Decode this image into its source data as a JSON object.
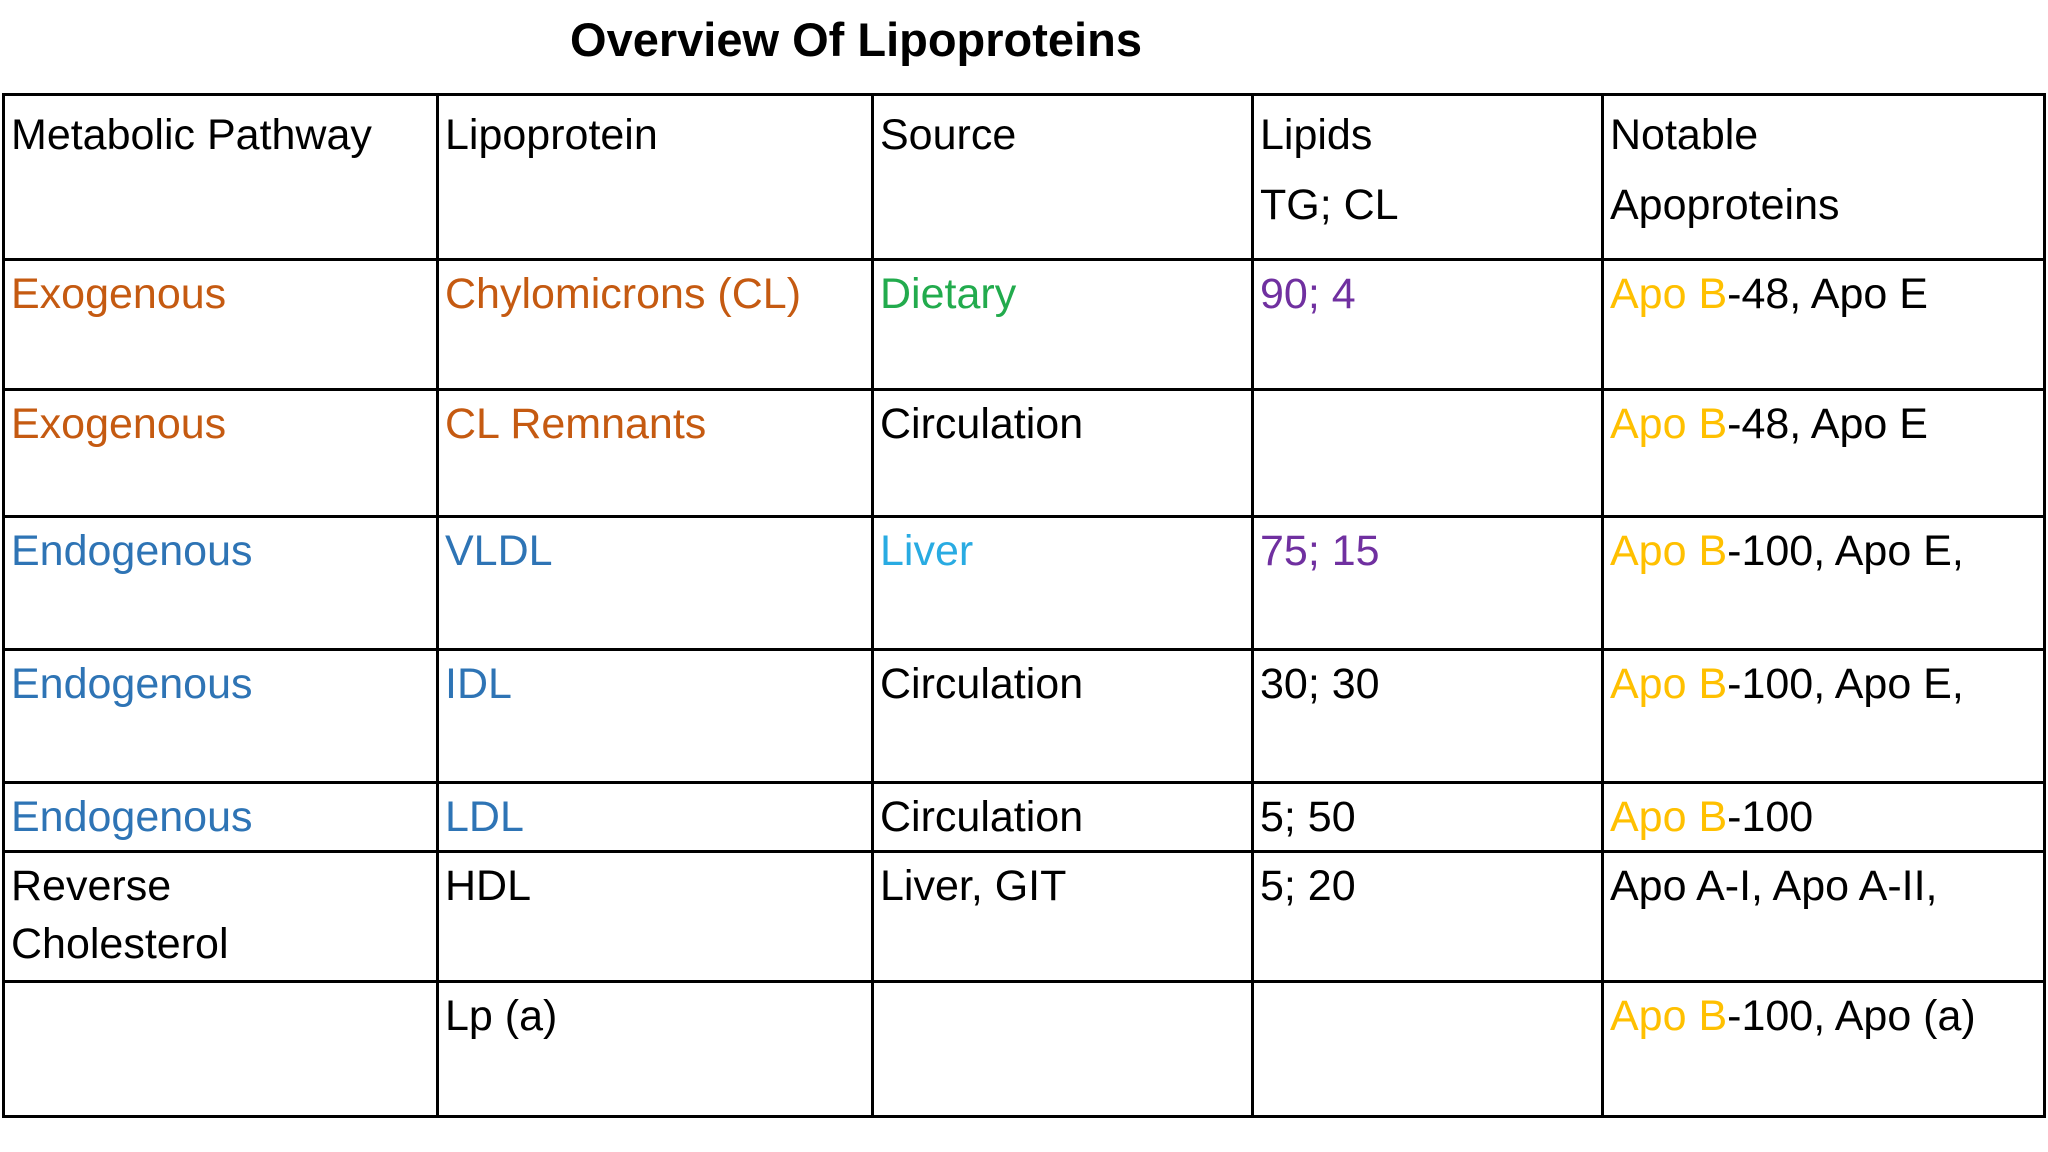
{
  "title": "Overview Of Lipoproteins",
  "palette": {
    "black": "#000000",
    "orange": "#C55A11",
    "green": "#22AB4D",
    "blue": "#2E74B5",
    "cyan": "#29ABE2",
    "purple": "#7030A0",
    "yellow": "#FFC000"
  },
  "table": {
    "header": [
      {
        "lines": [
          [
            {
              "t": "Metabolic Pathway",
              "c": "black"
            }
          ]
        ]
      },
      {
        "lines": [
          [
            {
              "t": "Lipoprotein",
              "c": "black"
            }
          ]
        ]
      },
      {
        "lines": [
          [
            {
              "t": "Source",
              "c": "black"
            }
          ]
        ]
      },
      {
        "lines": [
          [
            {
              "t": "Lipids",
              "c": "black"
            }
          ],
          [
            {
              "t": "TG; CL",
              "c": "black"
            }
          ]
        ]
      },
      {
        "lines": [
          [
            {
              "t": "Notable",
              "c": "black"
            }
          ],
          [
            {
              "t": "Apoproteins",
              "c": "black"
            }
          ]
        ]
      }
    ],
    "rows": [
      [
        {
          "lines": [
            [
              {
                "t": "Exogenous",
                "c": "orange"
              }
            ]
          ]
        },
        {
          "lines": [
            [
              {
                "t": "Chylomicrons (CL)",
                "c": "orange"
              }
            ]
          ]
        },
        {
          "lines": [
            [
              {
                "t": "Dietary",
                "c": "green"
              }
            ]
          ]
        },
        {
          "lines": [
            [
              {
                "t": "90; 4",
                "c": "purple"
              }
            ]
          ]
        },
        {
          "lines": [
            [
              {
                "t": "Apo B",
                "c": "yellow"
              },
              {
                "t": "-48, Apo E",
                "c": "black"
              }
            ]
          ]
        }
      ],
      [
        {
          "lines": [
            [
              {
                "t": "Exogenous",
                "c": "orange"
              }
            ]
          ]
        },
        {
          "lines": [
            [
              {
                "t": "CL Remnants",
                "c": "orange"
              }
            ]
          ]
        },
        {
          "lines": [
            [
              {
                "t": "Circulation",
                "c": "black"
              }
            ]
          ]
        },
        {
          "lines": []
        },
        {
          "lines": [
            [
              {
                "t": "Apo B",
                "c": "yellow"
              },
              {
                "t": "-48, Apo E",
                "c": "black"
              }
            ]
          ]
        }
      ],
      [
        {
          "lines": [
            [
              {
                "t": "Endogenous",
                "c": "blue"
              }
            ]
          ]
        },
        {
          "lines": [
            [
              {
                "t": "VLDL",
                "c": "blue"
              }
            ]
          ]
        },
        {
          "lines": [
            [
              {
                "t": "Liver",
                "c": "cyan"
              }
            ]
          ]
        },
        {
          "lines": [
            [
              {
                "t": "75; 15",
                "c": "purple"
              }
            ]
          ]
        },
        {
          "lines": [
            [
              {
                "t": "Apo B",
                "c": "yellow"
              },
              {
                "t": "-100, Apo E,",
                "c": "black"
              }
            ]
          ]
        }
      ],
      [
        {
          "lines": [
            [
              {
                "t": "Endogenous",
                "c": "blue"
              }
            ]
          ]
        },
        {
          "lines": [
            [
              {
                "t": "IDL",
                "c": "blue"
              }
            ]
          ]
        },
        {
          "lines": [
            [
              {
                "t": "Circulation",
                "c": "black"
              }
            ]
          ]
        },
        {
          "lines": [
            [
              {
                "t": "30; 30",
                "c": "black"
              }
            ]
          ]
        },
        {
          "lines": [
            [
              {
                "t": "Apo B",
                "c": "yellow"
              },
              {
                "t": "-100, Apo E,",
                "c": "black"
              }
            ]
          ]
        }
      ],
      [
        {
          "lines": [
            [
              {
                "t": "Endogenous",
                "c": "blue"
              }
            ]
          ]
        },
        {
          "lines": [
            [
              {
                "t": "LDL",
                "c": "blue"
              }
            ]
          ]
        },
        {
          "lines": [
            [
              {
                "t": "Circulation",
                "c": "black"
              }
            ]
          ]
        },
        {
          "lines": [
            [
              {
                "t": "5; 50",
                "c": "black"
              }
            ]
          ]
        },
        {
          "lines": [
            [
              {
                "t": "Apo B",
                "c": "yellow"
              },
              {
                "t": "-100",
                "c": "black"
              }
            ]
          ]
        }
      ],
      [
        {
          "lines": [
            [
              {
                "t": "Reverse",
                "c": "black"
              }
            ],
            [
              {
                "t": "Cholesterol",
                "c": "black"
              }
            ]
          ]
        },
        {
          "lines": [
            [
              {
                "t": "HDL",
                "c": "black"
              }
            ]
          ]
        },
        {
          "lines": [
            [
              {
                "t": "Liver, GIT",
                "c": "black"
              }
            ]
          ]
        },
        {
          "lines": [
            [
              {
                "t": "5; 20",
                "c": "black"
              }
            ]
          ]
        },
        {
          "lines": [
            [
              {
                "t": "Apo A-I, Apo A-II,",
                "c": "black"
              }
            ]
          ]
        }
      ],
      [
        {
          "lines": []
        },
        {
          "lines": [
            [
              {
                "t": "Lp (a)",
                "c": "black"
              }
            ]
          ]
        },
        {
          "lines": []
        },
        {
          "lines": []
        },
        {
          "lines": [
            [
              {
                "t": "Apo B",
                "c": "yellow"
              },
              {
                "t": "-100, Apo (a)",
                "c": "black"
              }
            ]
          ]
        }
      ]
    ]
  },
  "chart_data": {
    "type": "table",
    "title": "Overview Of Lipoproteins",
    "columns": [
      "Metabolic Pathway",
      "Lipoprotein",
      "Source",
      "Lipids TG; CL",
      "Notable Apoproteins"
    ],
    "rows": [
      [
        "Exogenous",
        "Chylomicrons (CL)",
        "Dietary",
        "90; 4",
        "Apo B-48, Apo E"
      ],
      [
        "Exogenous",
        "CL Remnants",
        "Circulation",
        "",
        "Apo B-48, Apo E"
      ],
      [
        "Endogenous",
        "VLDL",
        "Liver",
        "75; 15",
        "Apo B-100, Apo E,"
      ],
      [
        "Endogenous",
        "IDL",
        "Circulation",
        "30; 30",
        "Apo B-100, Apo E,"
      ],
      [
        "Endogenous",
        "LDL",
        "Circulation",
        "5; 50",
        "Apo B-100"
      ],
      [
        "Reverse Cholesterol",
        "HDL",
        "Liver, GIT",
        "5; 20",
        "Apo A-I, Apo A-II,"
      ],
      [
        "",
        "Lp (a)",
        "",
        "",
        "Apo B-100, Apo (a)"
      ]
    ],
    "layout_hints": {
      "grid": true,
      "header_row": true,
      "text_align": "left",
      "title_bold": true
    }
  }
}
